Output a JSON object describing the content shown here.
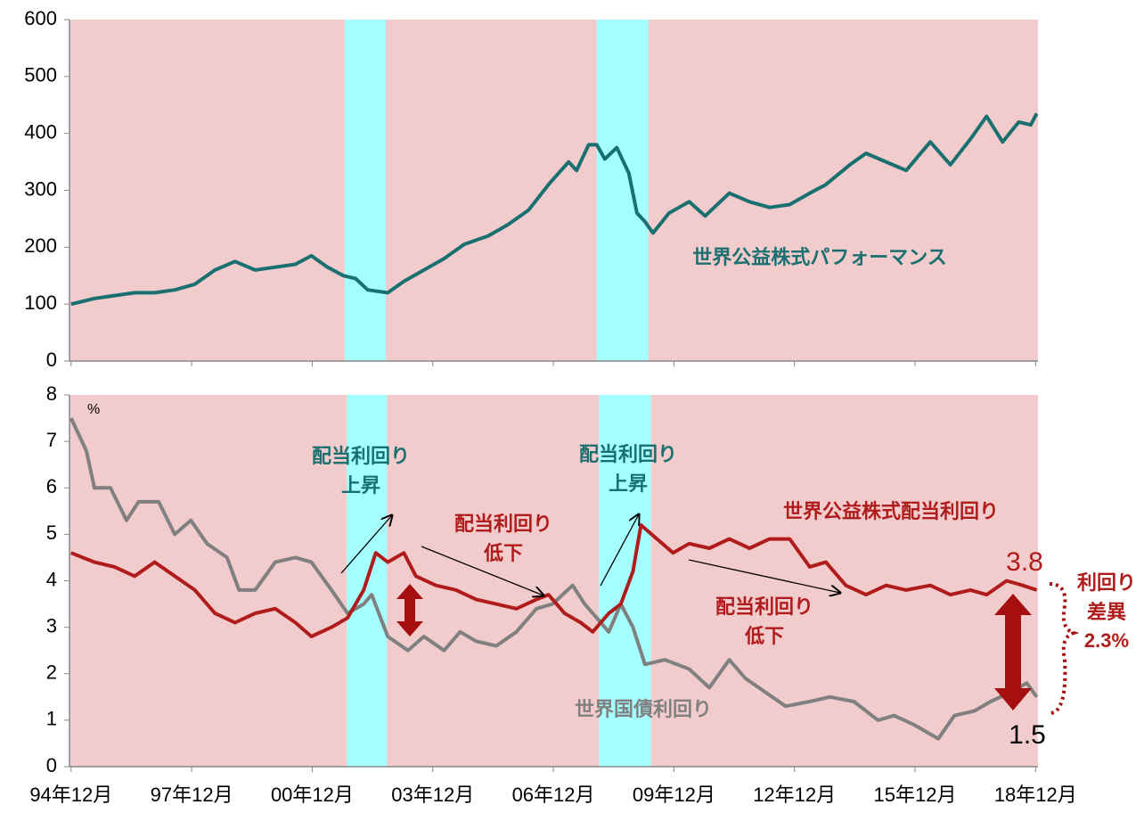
{
  "chart_data": [
    {
      "type": "line",
      "xlim": [
        1994.88,
        2018.98
      ],
      "xticks": [
        1994.92,
        1997.92,
        2000.92,
        2003.92,
        2006.92,
        2009.92,
        2012.92,
        2015.92,
        2018.92
      ],
      "ylim": [
        0,
        600
      ],
      "yticks": [
        0,
        100,
        200,
        300,
        400,
        500,
        600
      ],
      "background": "#f2cccc",
      "shaded_regions": [
        {
          "from": 2001.73,
          "to": 2002.75,
          "color": "#a6ffff"
        },
        {
          "from": 2008.0,
          "to": 2009.28,
          "color": "#a6ffff"
        }
      ],
      "series": [
        {
          "name": "世界公益株式パフォーマンス",
          "color": "#1a7070",
          "x": [
            1994.92,
            1995.5,
            1996,
            1996.5,
            1997,
            1997.5,
            1998,
            1998.5,
            1999,
            1999.5,
            2000,
            2000.5,
            2000.9,
            2001.3,
            2001.7,
            2002.0,
            2002.3,
            2002.8,
            2003.2,
            2003.7,
            2004.2,
            2004.7,
            2005.3,
            2005.8,
            2006.3,
            2006.8,
            2007.3,
            2007.5,
            2007.8,
            2008.0,
            2008.2,
            2008.5,
            2008.8,
            2009.0,
            2009.2,
            2009.4,
            2009.8,
            2010.3,
            2010.7,
            2011.3,
            2011.8,
            2012.3,
            2012.8,
            2013.3,
            2013.7,
            2014.3,
            2014.7,
            2015.2,
            2015.7,
            2016.3,
            2016.8,
            2017.3,
            2017.7,
            2018.1,
            2018.5,
            2018.8,
            2018.95
          ],
          "values": [
            100,
            110,
            115,
            120,
            120,
            125,
            135,
            160,
            175,
            160,
            165,
            170,
            185,
            165,
            150,
            145,
            125,
            120,
            140,
            160,
            180,
            205,
            220,
            240,
            265,
            310,
            350,
            335,
            380,
            380,
            355,
            375,
            330,
            260,
            245,
            225,
            260,
            280,
            255,
            295,
            280,
            270,
            275,
            295,
            310,
            345,
            365,
            350,
            335,
            385,
            345,
            390,
            430,
            385,
            420,
            415,
            435
          ]
        }
      ]
    },
    {
      "type": "line",
      "xlim": [
        1994.88,
        2018.98
      ],
      "xticks": [
        {
          "value": 1994.92,
          "label": "94年12月"
        },
        {
          "value": 1997.92,
          "label": "97年12月"
        },
        {
          "value": 2000.92,
          "label": "00年12月"
        },
        {
          "value": 2003.92,
          "label": "03年12月"
        },
        {
          "value": 2006.92,
          "label": "06年12月"
        },
        {
          "value": 2009.92,
          "label": "09年12月"
        },
        {
          "value": 2012.92,
          "label": "12年12月"
        },
        {
          "value": 2015.92,
          "label": "15年12月"
        },
        {
          "value": 2018.92,
          "label": "18年12月"
        }
      ],
      "ylim": [
        0,
        8
      ],
      "yticks": [
        0,
        1,
        2,
        3,
        4,
        5,
        6,
        7,
        8
      ],
      "y_unit": "%",
      "background": "#f2cccc",
      "shaded_regions": [
        {
          "from": 2001.78,
          "to": 2002.78,
          "color": "#a6ffff"
        },
        {
          "from": 2008.05,
          "to": 2009.35,
          "color": "#a6ffff"
        }
      ],
      "series": [
        {
          "name": "世界国債利回り",
          "color": "#808080",
          "x": [
            1994.92,
            1995.3,
            1995.5,
            1995.9,
            1996.3,
            1996.6,
            1997.1,
            1997.5,
            1997.9,
            1998.3,
            1998.8,
            1999.1,
            1999.5,
            2000.0,
            2000.5,
            2000.9,
            2001.4,
            2001.8,
            2002.2,
            2002.4,
            2002.8,
            2003.3,
            2003.7,
            2004.2,
            2004.6,
            2005.0,
            2005.5,
            2006.0,
            2006.5,
            2006.9,
            2007.4,
            2007.7,
            2008.0,
            2008.3,
            2008.6,
            2008.9,
            2009.2,
            2009.7,
            2010.3,
            2010.8,
            2011.3,
            2011.7,
            2012.2,
            2012.7,
            2013.3,
            2013.8,
            2014.4,
            2015.0,
            2015.4,
            2015.9,
            2016.5,
            2016.9,
            2017.4,
            2017.8,
            2018.3,
            2018.7,
            2018.95
          ],
          "values": [
            7.5,
            6.8,
            6.0,
            6.0,
            5.3,
            5.7,
            5.7,
            5.0,
            5.3,
            4.8,
            4.5,
            3.8,
            3.8,
            4.4,
            4.5,
            4.4,
            3.8,
            3.3,
            3.5,
            3.7,
            2.8,
            2.5,
            2.8,
            2.5,
            2.9,
            2.7,
            2.6,
            2.9,
            3.4,
            3.5,
            3.9,
            3.5,
            3.2,
            2.9,
            3.5,
            3.0,
            2.2,
            2.3,
            2.1,
            1.7,
            2.3,
            1.9,
            1.6,
            1.3,
            1.4,
            1.5,
            1.4,
            1.0,
            1.1,
            0.9,
            0.6,
            1.1,
            1.2,
            1.4,
            1.6,
            1.8,
            1.5
          ]
        },
        {
          "name": "世界公益株式配当利回り",
          "color": "#b01c1c",
          "x": [
            1994.92,
            1995.5,
            1996.0,
            1996.5,
            1997.0,
            1997.5,
            1998.0,
            1998.5,
            1999.0,
            1999.5,
            2000.0,
            2000.5,
            2000.9,
            2001.4,
            2001.8,
            2002.2,
            2002.5,
            2002.8,
            2003.2,
            2003.5,
            2004.0,
            2004.5,
            2005.0,
            2005.5,
            2006.0,
            2006.5,
            2006.8,
            2007.2,
            2007.6,
            2007.9,
            2008.3,
            2008.6,
            2008.9,
            2009.1,
            2009.5,
            2009.9,
            2010.3,
            2010.8,
            2011.3,
            2011.8,
            2012.3,
            2012.8,
            2013.3,
            2013.7,
            2014.2,
            2014.7,
            2015.2,
            2015.7,
            2016.3,
            2016.8,
            2017.3,
            2017.7,
            2018.2,
            2018.6,
            2018.95
          ],
          "values": [
            4.6,
            4.4,
            4.3,
            4.1,
            4.4,
            4.1,
            3.8,
            3.3,
            3.1,
            3.3,
            3.4,
            3.1,
            2.8,
            3.0,
            3.2,
            3.8,
            4.6,
            4.4,
            4.6,
            4.1,
            3.9,
            3.8,
            3.6,
            3.5,
            3.4,
            3.6,
            3.7,
            3.3,
            3.1,
            2.9,
            3.3,
            3.5,
            4.2,
            5.2,
            4.9,
            4.6,
            4.8,
            4.7,
            4.9,
            4.7,
            4.9,
            4.9,
            4.3,
            4.4,
            3.9,
            3.7,
            3.9,
            3.8,
            3.9,
            3.7,
            3.8,
            3.7,
            4.0,
            3.9,
            3.8
          ]
        }
      ],
      "annotations": [
        {
          "lines": [
            "配当利回り",
            "上昇"
          ]
        },
        {
          "lines": [
            "配当利回り",
            "上昇"
          ]
        },
        {
          "lines": [
            "配当利回り",
            "低下"
          ]
        },
        {
          "lines": [
            "配当利回り",
            "低下"
          ]
        },
        {
          "lines": [
            "3.8"
          ]
        },
        {
          "lines": [
            "1.5"
          ]
        },
        {
          "lines": [
            "利回り",
            "差異",
            "2.3%"
          ]
        }
      ]
    }
  ]
}
